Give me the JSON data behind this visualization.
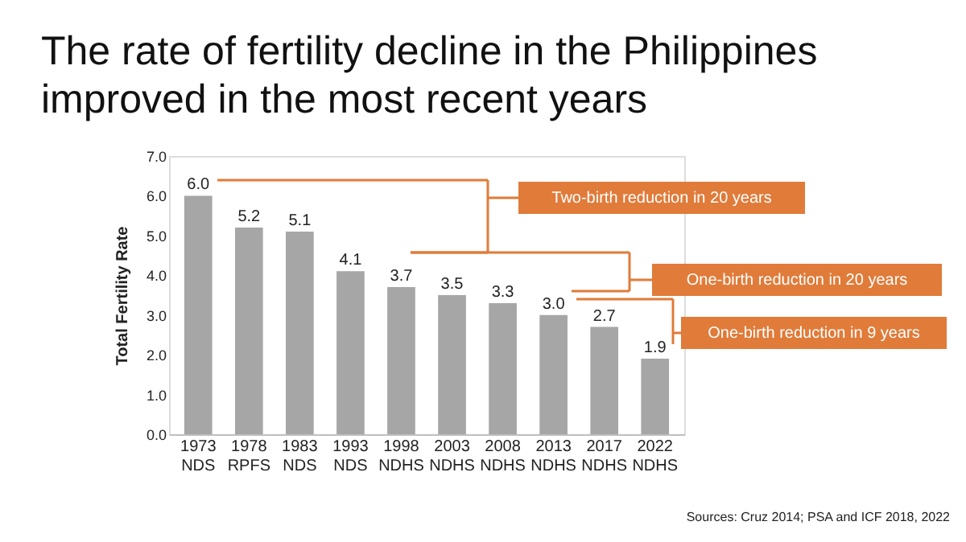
{
  "chart_data": {
    "type": "bar",
    "title": [
      "The rate of fertility decline in the Philippines",
      "improved in the most recent years"
    ],
    "categories": [
      "1973 NDS",
      "1978 RPFS",
      "1983 NDS",
      "1993 NDS",
      "1998 NDHS",
      "2003 NDHS",
      "2008 NDHS",
      "2013 NDHS",
      "2017 NDHS",
      "2022 NDHS"
    ],
    "values": [
      6.0,
      5.2,
      5.1,
      4.1,
      3.7,
      3.5,
      3.3,
      3.0,
      2.7,
      1.9
    ],
    "color": "#a6a6a6",
    "ylabel": "Total Fertility Rate",
    "ylim": [
      0,
      7
    ],
    "yticks": [
      {
        "value": 0,
        "label": "0.0"
      },
      {
        "value": 1,
        "label": "1.0"
      },
      {
        "value": 2,
        "label": "2.0"
      },
      {
        "value": 3,
        "label": "3.0"
      },
      {
        "value": 4,
        "label": "4.0"
      },
      {
        "value": 5,
        "label": "5.0"
      },
      {
        "value": 6,
        "label": "6.0"
      },
      {
        "value": 7,
        "label": "7.0"
      }
    ],
    "value_labels": [
      "6.0",
      "5.2",
      "5.1",
      "4.1",
      "3.7",
      "3.5",
      "3.3",
      "3.0",
      "2.7",
      "1.9"
    ],
    "grid": false,
    "annotations": [
      "Two-birth reduction in 20 years",
      "One-birth reduction in 20 years",
      "One-birth reduction in 9 years",
      "Sources: Cruz 2014; PSA and ICF 2018, 2022"
    ]
  }
}
